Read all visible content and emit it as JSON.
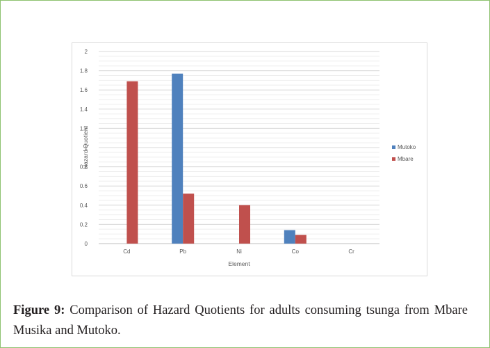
{
  "chart_data": {
    "type": "bar",
    "categories": [
      "Cd",
      "Pb",
      "Ni",
      "Co",
      "Cr"
    ],
    "series": [
      {
        "name": "Mutoko",
        "color": "#4f81bd",
        "values": [
          0,
          1.77,
          0,
          0.14,
          0
        ]
      },
      {
        "name": "Mbare",
        "color": "#c0504d",
        "values": [
          1.69,
          0.52,
          0.4,
          0.09,
          0
        ]
      }
    ],
    "title": "",
    "xlabel": "Element",
    "ylabel": "Hazard Quotient",
    "ylim": [
      0,
      2
    ],
    "yticks": [
      "0",
      "0.2",
      "0.4",
      "0.6",
      "0.8",
      "1",
      "1.2",
      "1.4",
      "1.6",
      "1.8",
      "2"
    ],
    "grid": true,
    "legend_position": "right"
  },
  "caption": {
    "label": "Figure 9:",
    "text": "Comparison of Hazard Quotients for adults consuming tsunga from Mbare Musika and Mutoko."
  }
}
